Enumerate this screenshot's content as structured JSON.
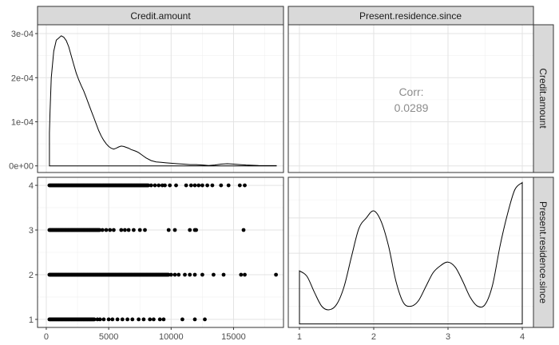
{
  "chart_data": {
    "type": "pairs",
    "variables": [
      "Credit.amount",
      "Present.residence.since"
    ],
    "grid": true,
    "panels": [
      {
        "row": 0,
        "col": 0,
        "type": "density",
        "variable": "Credit.amount",
        "xlim": [
          -700,
          19000
        ],
        "ylim": [
          -1.5e-05,
          0.00032
        ],
        "yticks": [
          0,
          0.0001,
          0.0002,
          0.0003
        ],
        "ytick_labels": [
          "0e+00",
          "1e-04",
          "2e-04",
          "3e-04"
        ],
        "x": [
          250,
          300,
          400,
          600,
          800,
          1000,
          1200,
          1400,
          1600,
          1800,
          2000,
          2200,
          2400,
          2600,
          2800,
          3000,
          3200,
          3400,
          3600,
          3800,
          4000,
          4200,
          4400,
          4600,
          4800,
          5000,
          5200,
          5400,
          5600,
          5800,
          6000,
          6200,
          6400,
          6600,
          6800,
          7000,
          7200,
          7400,
          7600,
          7800,
          8000,
          8400,
          8800,
          9200,
          9600,
          10000,
          10500,
          11000,
          11500,
          12000,
          12500,
          13000,
          13500,
          14000,
          14500,
          15000,
          15500,
          16000,
          17000,
          18000,
          18424
        ],
        "values": [
          7.5e-05,
          0.00012,
          0.0002,
          0.00026,
          0.000285,
          0.00029,
          0.000295,
          0.000292,
          0.000284,
          0.00027,
          0.00025,
          0.00023,
          0.00021,
          0.000195,
          0.000182,
          0.00017,
          0.000155,
          0.00014,
          0.000125,
          0.00011,
          9.5e-05,
          8e-05,
          6.8e-05,
          5.8e-05,
          5e-05,
          4.4e-05,
          4e-05,
          3.8e-05,
          4e-05,
          4.3e-05,
          4.5e-05,
          4.4e-05,
          4.2e-05,
          4e-05,
          3.7e-05,
          3.5e-05,
          3.3e-05,
          3e-05,
          2.6e-05,
          2.2e-05,
          1.8e-05,
          1.2e-05,
          9e-06,
          8e-06,
          7e-06,
          6e-06,
          5e-06,
          4e-06,
          3e-06,
          3e-06,
          2e-06,
          1e-06,
          2e-06,
          4e-06,
          5e-06,
          4e-06,
          3e-06,
          2e-06,
          1e-06,
          5e-07,
          5e-07
        ]
      },
      {
        "row": 0,
        "col": 1,
        "type": "text",
        "label": "Corr:",
        "value": "0.0289"
      },
      {
        "row": 1,
        "col": 0,
        "type": "scatter",
        "xvar": "Credit.amount",
        "yvar": "Present.residence.since",
        "xlim": [
          -700,
          19000
        ],
        "ylim": [
          0.82,
          4.18
        ],
        "xticks": [
          0,
          5000,
          10000,
          15000
        ],
        "xtick_labels": [
          "0",
          "5000",
          "10000",
          "15000"
        ],
        "yticks": [
          1,
          2,
          3,
          4
        ],
        "ytick_labels": [
          "1",
          "2",
          "3",
          "4"
        ],
        "levels": [
          {
            "y": 4,
            "dense": [
              250,
              8200
            ],
            "sparse": [
              8400,
              8700,
              9000,
              9300,
              9500,
              9900,
              10400,
              11200,
              11600,
              11900,
              12200,
              12500,
              12900,
              13300,
              14000,
              14600,
              15500,
              15900
            ]
          },
          {
            "y": 3,
            "dense": [
              250,
              4300
            ],
            "sparse": [
              4500,
              4800,
              5100,
              5400,
              6000,
              6300,
              6600,
              7000,
              7500,
              7900,
              9800,
              10300,
              11500,
              11900,
              12000,
              15800
            ]
          },
          {
            "y": 2,
            "dense": [
              250,
              9800
            ],
            "sparse": [
              10000,
              10300,
              10600,
              11100,
              11500,
              11900,
              12500,
              13400,
              14200,
              15600,
              15900,
              18400
            ]
          },
          {
            "y": 1,
            "dense": [
              250,
              3900
            ],
            "sparse": [
              4100,
              4300,
              4600,
              5000,
              5300,
              5700,
              6100,
              6500,
              6900,
              7400,
              7800,
              8300,
              8600,
              9100,
              9400,
              10900,
              11900,
              12700
            ]
          }
        ]
      },
      {
        "row": 1,
        "col": 1,
        "type": "density",
        "variable": "Present.residence.since",
        "xlim": [
          0.85,
          4.15
        ],
        "ylim": [
          -0.02,
          0.83
        ],
        "xticks": [
          1,
          2,
          3,
          4
        ],
        "xtick_labels": [
          "1",
          "2",
          "3",
          "4"
        ],
        "x": [
          1.0,
          1.1,
          1.2,
          1.3,
          1.4,
          1.5,
          1.6,
          1.7,
          1.8,
          1.9,
          2.0,
          2.1,
          2.2,
          2.3,
          2.4,
          2.5,
          2.6,
          2.7,
          2.8,
          2.9,
          3.0,
          3.1,
          3.2,
          3.3,
          3.4,
          3.5,
          3.6,
          3.7,
          3.8,
          3.9,
          4.0
        ],
        "values": [
          0.3,
          0.27,
          0.18,
          0.1,
          0.08,
          0.11,
          0.21,
          0.38,
          0.54,
          0.6,
          0.64,
          0.58,
          0.44,
          0.24,
          0.12,
          0.1,
          0.13,
          0.21,
          0.29,
          0.33,
          0.35,
          0.32,
          0.24,
          0.15,
          0.1,
          0.11,
          0.22,
          0.44,
          0.62,
          0.76,
          0.8
        ]
      }
    ]
  }
}
